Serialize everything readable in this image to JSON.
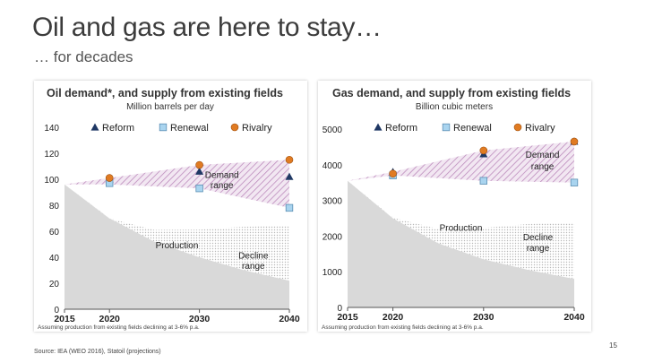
{
  "slide": {
    "title": "Oil and gas are here to stay…",
    "subtitle": "… for decades",
    "source": "Source: IEA (WEO 2016), Statoil (projections)",
    "page_number": "15"
  },
  "colors": {
    "production": "#d9d9d9",
    "demand_range": "#b57fb5",
    "reform": "#1f3864",
    "renewal": "#a9d4ef",
    "rivalry": "#e07b22"
  },
  "chart_data": [
    {
      "type": "area",
      "title": "Oil demand*, and supply from existing fields",
      "subtitle": "Million barrels per day",
      "ylim": [
        0,
        140
      ],
      "yticks": [
        0,
        20,
        40,
        60,
        80,
        100,
        120,
        140
      ],
      "xlim": [
        2015,
        2040
      ],
      "xticks": [
        2015,
        2020,
        2030,
        2040
      ],
      "legend": [
        "Reform",
        "Renewal",
        "Rivalry"
      ],
      "legend_placement": "top",
      "series": [
        {
          "name": "Reform",
          "marker": "triangle",
          "x": [
            2020,
            2030,
            2040
          ],
          "y": [
            100,
            106,
            102
          ]
        },
        {
          "name": "Renewal",
          "marker": "square",
          "x": [
            2020,
            2030,
            2040
          ],
          "y": [
            97,
            93,
            78
          ]
        },
        {
          "name": "Rivalry",
          "marker": "circle",
          "x": [
            2020,
            2030,
            2040
          ],
          "y": [
            101,
            111,
            115
          ]
        }
      ],
      "production": {
        "x": [
          2015,
          2020,
          2025,
          2030,
          2035,
          2040
        ],
        "y": [
          96,
          70,
          52,
          40,
          30,
          22
        ]
      },
      "demand_range": {
        "x": [
          2015,
          2020,
          2030,
          2040
        ],
        "low": [
          96,
          96,
          93,
          78
        ],
        "high": [
          96,
          101,
          111,
          115
        ]
      },
      "annotations": [
        {
          "text": "Demand",
          "x": 2032.5,
          "y": 101
        },
        {
          "text": "range",
          "x": 2032.5,
          "y": 93
        },
        {
          "text": "Production",
          "x": 2027.5,
          "y": 47
        },
        {
          "text": "Decline",
          "x": 2036,
          "y": 39
        },
        {
          "text": "range",
          "x": 2036,
          "y": 31
        }
      ],
      "footnote": "Assuming production from existing fields declining at 3-6% p.a."
    },
    {
      "type": "area",
      "title": "Gas demand, and supply from existing fields",
      "subtitle": "Billion cubic meters",
      "ylim": [
        0,
        5000
      ],
      "yticks": [
        0,
        1000,
        2000,
        3000,
        4000,
        5000
      ],
      "xlim": [
        2015,
        2040
      ],
      "xticks": [
        2015,
        2020,
        2030,
        2040
      ],
      "legend": [
        "Reform",
        "Renewal",
        "Rivalry"
      ],
      "legend_placement": "top",
      "series": [
        {
          "name": "Reform",
          "marker": "triangle",
          "x": [
            2020,
            2030,
            2040
          ],
          "y": [
            3800,
            4300,
            4650
          ]
        },
        {
          "name": "Renewal",
          "marker": "square",
          "x": [
            2020,
            2030,
            2040
          ],
          "y": [
            3700,
            3550,
            3500
          ]
        },
        {
          "name": "Rivalry",
          "marker": "circle",
          "x": [
            2020,
            2030,
            2040
          ],
          "y": [
            3750,
            4400,
            4650
          ]
        }
      ],
      "production": {
        "x": [
          2015,
          2020,
          2025,
          2030,
          2035,
          2040
        ],
        "y": [
          3550,
          2500,
          1800,
          1350,
          1050,
          800
        ]
      },
      "demand_range": {
        "x": [
          2015,
          2020,
          2030,
          2040
        ],
        "low": [
          3550,
          3700,
          3550,
          3500
        ],
        "high": [
          3550,
          3800,
          4400,
          4650
        ]
      },
      "annotations": [
        {
          "text": "Demand",
          "x": 2036.5,
          "y": 4200
        },
        {
          "text": "range",
          "x": 2036.5,
          "y": 3870
        },
        {
          "text": "Production",
          "x": 2027.5,
          "y": 2150
        },
        {
          "text": "Decline",
          "x": 2036,
          "y": 1880
        },
        {
          "text": "range",
          "x": 2036,
          "y": 1580
        }
      ],
      "footnote": "Assuming production from existing fields declining at 3-6% p.a."
    }
  ]
}
